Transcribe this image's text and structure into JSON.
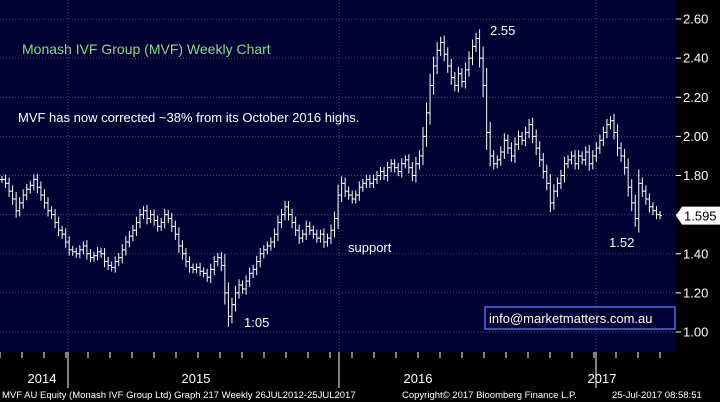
{
  "chart_data": {
    "type": "ohlc",
    "title": "Monash IVF Group (MVF) Weekly Chart",
    "note": "MVF has now corrected ~38% from its October 2016 highs.",
    "ylim": [
      0.92,
      2.68
    ],
    "y_ticks": [
      "2.60",
      "2.40",
      "2.20",
      "2.00",
      "1.80",
      "1.60",
      "1.40",
      "1.20",
      "1.00"
    ],
    "x_ticks": [
      "2014",
      "2015",
      "2016",
      "2017"
    ],
    "last_price": "1.595",
    "grid": true,
    "annotations": [
      {
        "label": "2.55",
        "value": 2.55
      },
      {
        "label": "support",
        "value": 1.45
      },
      {
        "label": "1:05",
        "value": 1.05
      },
      {
        "label": "1.52",
        "value": 1.52
      }
    ],
    "series": [
      {
        "values": [
          1.78,
          1.76,
          1.72,
          1.68,
          1.62,
          1.66,
          1.7,
          1.73,
          1.75,
          1.78,
          1.74,
          1.7,
          1.66,
          1.62,
          1.6,
          1.56,
          1.52,
          1.5,
          1.46,
          1.42,
          1.41,
          1.4,
          1.42,
          1.44,
          1.4,
          1.38,
          1.39,
          1.41,
          1.4,
          1.36,
          1.34,
          1.33,
          1.36,
          1.38,
          1.42,
          1.46,
          1.49,
          1.52,
          1.56,
          1.6,
          1.62,
          1.58,
          1.6,
          1.57,
          1.54,
          1.56,
          1.6,
          1.58,
          1.54,
          1.5,
          1.44,
          1.4,
          1.36,
          1.33,
          1.32,
          1.33,
          1.31,
          1.3,
          1.28,
          1.32,
          1.36,
          1.38,
          1.34,
          1.2,
          1.08,
          1.14,
          1.2,
          1.24,
          1.22,
          1.26,
          1.3,
          1.32,
          1.36,
          1.4,
          1.42,
          1.44,
          1.46,
          1.5,
          1.56,
          1.6,
          1.64,
          1.6,
          1.56,
          1.52,
          1.48,
          1.5,
          1.54,
          1.52,
          1.5,
          1.48,
          1.5,
          1.46,
          1.48,
          1.52,
          1.58,
          1.7,
          1.76,
          1.72,
          1.7,
          1.68,
          1.7,
          1.74,
          1.76,
          1.78,
          1.76,
          1.78,
          1.8,
          1.82,
          1.8,
          1.84,
          1.86,
          1.84,
          1.82,
          1.86,
          1.88,
          1.84,
          1.8,
          1.86,
          1.9,
          2.0,
          2.12,
          2.26,
          2.36,
          2.44,
          2.48,
          2.42,
          2.36,
          2.3,
          2.26,
          2.32,
          2.28,
          2.34,
          2.4,
          2.46,
          2.5,
          2.4,
          2.26,
          2.02,
          1.9,
          1.86,
          1.88,
          1.92,
          1.98,
          1.94,
          1.9,
          1.96,
          2.0,
          1.98,
          2.02,
          2.06,
          2.0,
          1.94,
          1.88,
          1.82,
          1.76,
          1.66,
          1.72,
          1.76,
          1.8,
          1.86,
          1.88,
          1.9,
          1.86,
          1.9,
          1.88,
          1.92,
          1.86,
          1.9,
          1.94,
          1.98,
          2.02,
          2.06,
          2.08,
          2.02,
          1.94,
          1.9,
          1.84,
          1.74,
          1.66,
          1.58,
          1.76,
          1.72,
          1.68,
          1.64,
          1.62,
          1.6,
          1.595
        ]
      }
    ]
  },
  "footer": {
    "left": "MVF AU Equity (Monash IVF Group Ltd) Graph 217  Weekly 26JUL2012-25JUL2017",
    "center": "Copyright© 2017 Bloomberg Finance L.P.",
    "right": "25-Jul-2017 08:58:51"
  },
  "link": "info@marketmatters.com.au",
  "colors": {
    "plot_bg": "#000033",
    "grid": "#4a4f7a",
    "bars": "#ffffff",
    "title": "#7fe08a",
    "link_box": "#3d6bd9"
  }
}
